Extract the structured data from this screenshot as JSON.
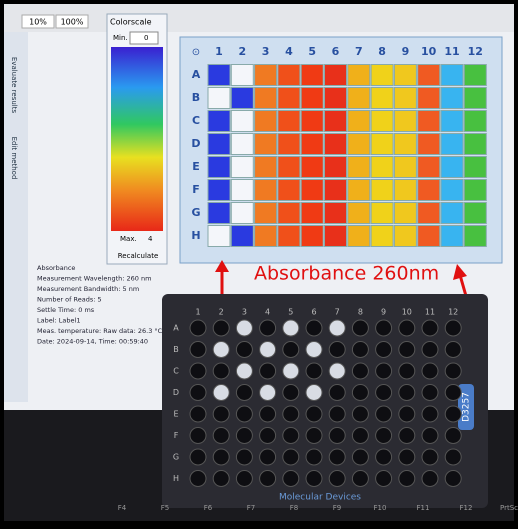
{
  "toolbar": {
    "zoom_small": "10%",
    "zoom_large": "100%"
  },
  "colorscale": {
    "title": "Colorscale",
    "min_label": "Min.",
    "min_value": "0",
    "max_label": "Max.",
    "max_value": "4",
    "button": "Recalculate"
  },
  "side_tabs": [
    "Evaluate results",
    "Edit method"
  ],
  "plate": {
    "corner": "⊙",
    "columns": [
      "1",
      "2",
      "3",
      "4",
      "5",
      "6",
      "7",
      "8",
      "9",
      "10",
      "11",
      "12"
    ],
    "rows": [
      "A",
      "B",
      "C",
      "D",
      "E",
      "F",
      "G",
      "H"
    ],
    "cell_colors": [
      [
        "#2a3ae0",
        "#f4f6fa",
        "#f07a22",
        "#f0501a",
        "#f03a14",
        "#e8301a",
        "#f0b01a",
        "#f0d21a",
        "#f0c81e",
        "#f05a22",
        "#38b4f0",
        "#48c040"
      ],
      [
        "#f4f6fa",
        "#2a3ae0",
        "#f07a22",
        "#f0501a",
        "#f03a14",
        "#e8301a",
        "#f0b01a",
        "#f0d21a",
        "#f0c81e",
        "#f05a22",
        "#38b4f0",
        "#48c040"
      ],
      [
        "#2a3ae0",
        "#f4f6fa",
        "#f07a22",
        "#f0501a",
        "#f03a14",
        "#e8301a",
        "#f0b01a",
        "#f0d21a",
        "#f0c81e",
        "#f05a22",
        "#38b4f0",
        "#48c040"
      ],
      [
        "#2a3ae0",
        "#f4f6fa",
        "#f07a22",
        "#f0501a",
        "#f03a14",
        "#e8301a",
        "#f0b01a",
        "#f0d21a",
        "#f0c81e",
        "#f05a22",
        "#38b4f0",
        "#48c040"
      ],
      [
        "#2a3ae0",
        "#f4f6fa",
        "#f07a22",
        "#f0501a",
        "#f03a14",
        "#e8301a",
        "#f0b01a",
        "#f0d21a",
        "#f0c81e",
        "#f05a22",
        "#38b4f0",
        "#48c040"
      ],
      [
        "#2a3ae0",
        "#f4f6fa",
        "#f07a22",
        "#f0501a",
        "#f03a14",
        "#e8301a",
        "#f0b01a",
        "#f0d21a",
        "#f0c81e",
        "#f05a22",
        "#38b4f0",
        "#48c040"
      ],
      [
        "#2a3ae0",
        "#f4f6fa",
        "#f07a22",
        "#f0501a",
        "#f03a14",
        "#e8301a",
        "#f0b01a",
        "#f0d21a",
        "#f0c81e",
        "#f05a22",
        "#38b4f0",
        "#48c040"
      ],
      [
        "#f4f6fa",
        "#2a3ae0",
        "#f07a22",
        "#f0501a",
        "#f03a14",
        "#e8301a",
        "#f0b01a",
        "#f0d21a",
        "#f0c81e",
        "#f05a22",
        "#38b4f0",
        "#48c040"
      ]
    ]
  },
  "info": [
    "Absorbance",
    "Measurement Wavelength: 260 nm",
    "Measurement Bandwidth: 5 nm",
    "Number of Reads: 5",
    "Settle Time: 0 ms",
    "Label: Label1",
    "Meas. temperature: Raw data: 26.3 °C",
    "Date: 2024-09-14, Time: 00:59:40"
  ],
  "annotation": "Absorbance 260nm",
  "physical_plate": {
    "brand": "Molecular Devices",
    "code": "D3257",
    "columns": [
      "1",
      "2",
      "3",
      "4",
      "5",
      "6",
      "7",
      "8",
      "9",
      "10",
      "11",
      "12"
    ],
    "rows": [
      "A",
      "B",
      "C",
      "D",
      "E",
      "F",
      "G",
      "H"
    ]
  },
  "keyboard": [
    "F4",
    "F5",
    "F6",
    "F7",
    "F8",
    "F9",
    "F10",
    "F11",
    "F12",
    "PrtSc"
  ]
}
